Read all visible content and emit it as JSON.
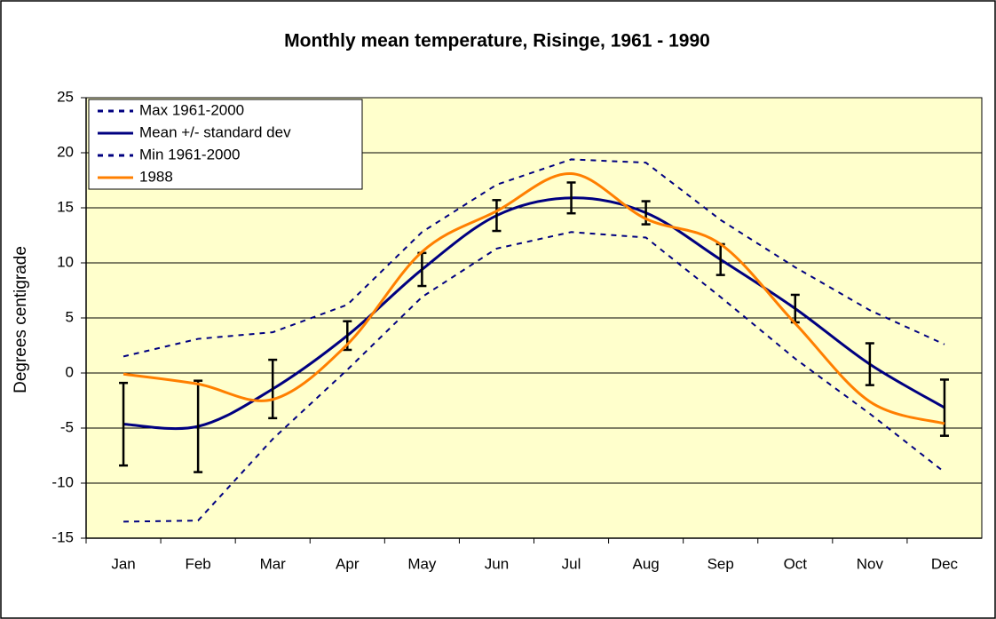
{
  "chart_data": {
    "type": "line",
    "title": "Monthly mean temperature, Risinge, 1961 - 1990",
    "y_label": "Degrees centigrade",
    "categories": [
      "Jan",
      "Feb",
      "Mar",
      "Apr",
      "May",
      "Jun",
      "Jul",
      "Aug",
      "Sep",
      "Oct",
      "Nov",
      "Dec"
    ],
    "series": [
      {
        "name": "Max 1961-2000",
        "color": "#000080",
        "dashed": true,
        "smooth": false,
        "values": [
          1.5,
          3.1,
          3.7,
          6.2,
          12.8,
          17.1,
          19.4,
          19.1,
          13.9,
          9.6,
          5.7,
          2.6
        ]
      },
      {
        "name": "Mean +/- standard dev",
        "color": "#000080",
        "dashed": false,
        "smooth": true,
        "values": [
          -4.65,
          -4.85,
          -1.45,
          3.4,
          9.4,
          14.3,
          15.9,
          14.55,
          10.3,
          5.85,
          0.8,
          -3.15
        ],
        "errors": [
          3.75,
          4.15,
          2.65,
          1.3,
          1.5,
          1.4,
          1.4,
          1.05,
          1.4,
          1.25,
          1.9,
          2.55
        ]
      },
      {
        "name": "Min 1961-2000",
        "color": "#000080",
        "dashed": true,
        "smooth": false,
        "values": [
          -13.5,
          -13.4,
          -6.0,
          0.3,
          6.9,
          11.3,
          12.8,
          12.3,
          6.9,
          1.3,
          -3.7,
          -9.0
        ]
      },
      {
        "name": "1988",
        "color": "#FF7F00",
        "dashed": false,
        "smooth": true,
        "values": [
          -0.1,
          -1.0,
          -2.4,
          2.6,
          11.0,
          14.7,
          18.1,
          14.0,
          11.7,
          4.5,
          -2.6,
          -4.6
        ]
      }
    ],
    "ylim": [
      -15,
      25
    ],
    "yticks": [
      -15,
      -10,
      -5,
      0,
      5,
      10,
      15,
      20,
      25
    ],
    "grid": true,
    "legend": "top-left",
    "plot_background": "#FFFFCC"
  }
}
